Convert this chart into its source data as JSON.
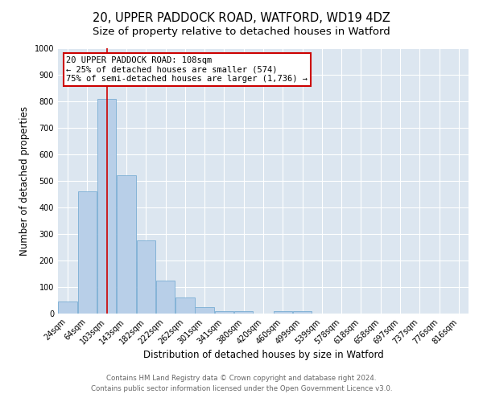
{
  "title1": "20, UPPER PADDOCK ROAD, WATFORD, WD19 4DZ",
  "title2": "Size of property relative to detached houses in Watford",
  "xlabel": "Distribution of detached houses by size in Watford",
  "ylabel": "Number of detached properties",
  "categories": [
    "24sqm",
    "64sqm",
    "103sqm",
    "143sqm",
    "182sqm",
    "222sqm",
    "262sqm",
    "301sqm",
    "341sqm",
    "380sqm",
    "420sqm",
    "460sqm",
    "499sqm",
    "539sqm",
    "578sqm",
    "618sqm",
    "658sqm",
    "697sqm",
    "737sqm",
    "776sqm",
    "816sqm"
  ],
  "values": [
    46,
    460,
    810,
    520,
    275,
    125,
    60,
    25,
    10,
    10,
    0,
    10,
    10,
    0,
    0,
    0,
    0,
    0,
    0,
    0,
    0
  ],
  "bar_color": "#b8cfe8",
  "bar_edge_color": "#7aadd4",
  "vline_color": "#cc0000",
  "annotation_text": "20 UPPER PADDOCK ROAD: 108sqm\n← 25% of detached houses are smaller (574)\n75% of semi-detached houses are larger (1,736) →",
  "annotation_box_color": "#ffffff",
  "annotation_box_edge": "#cc0000",
  "ylim": [
    0,
    1000
  ],
  "yticks": [
    0,
    100,
    200,
    300,
    400,
    500,
    600,
    700,
    800,
    900,
    1000
  ],
  "background_color": "#dce6f0",
  "footer1": "Contains HM Land Registry data © Crown copyright and database right 2024.",
  "footer2": "Contains public sector information licensed under the Open Government Licence v3.0.",
  "title1_fontsize": 10.5,
  "title2_fontsize": 9.5,
  "tick_fontsize": 7,
  "ylabel_fontsize": 8.5,
  "xlabel_fontsize": 8.5,
  "footer_fontsize": 6.2,
  "annotation_fontsize": 7.5
}
